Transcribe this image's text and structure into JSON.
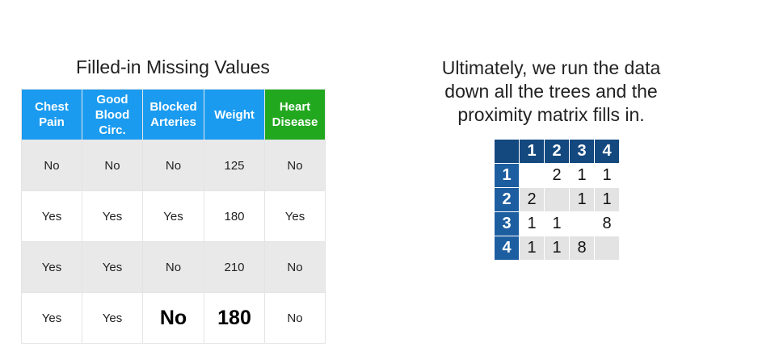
{
  "left_title": "Filled-in Missing Values",
  "colors": {
    "header_blue": "#1a9bf0",
    "header_green": "#22a81f",
    "row_gray": "#e9e9e9",
    "matrix_header": "#14497f"
  },
  "table": {
    "headers": [
      [
        "Chest",
        "Pain"
      ],
      [
        "Good",
        "Blood",
        "Circ."
      ],
      [
        "Blocked",
        "Arteries"
      ],
      [
        "Weight"
      ],
      [
        "Heart",
        "Disease"
      ]
    ],
    "rows": [
      [
        "No",
        "No",
        "No",
        "125",
        "No"
      ],
      [
        "Yes",
        "Yes",
        "Yes",
        "180",
        "Yes"
      ],
      [
        "Yes",
        "Yes",
        "No",
        "210",
        "No"
      ],
      [
        "Yes",
        "Yes",
        "No",
        "180",
        "No"
      ]
    ]
  },
  "right_title": [
    "Ultimately, we run the data",
    "down all the trees and the",
    "proximity matrix fills in."
  ],
  "matrix": {
    "col_labels": [
      "1",
      "2",
      "3",
      "4"
    ],
    "row_labels": [
      "1",
      "2",
      "3",
      "4"
    ],
    "cells": [
      [
        "",
        "2",
        "1",
        "1"
      ],
      [
        "2",
        "",
        "1",
        "1"
      ],
      [
        "1",
        "1",
        "",
        "8"
      ],
      [
        "1",
        "1",
        "8",
        ""
      ]
    ]
  }
}
